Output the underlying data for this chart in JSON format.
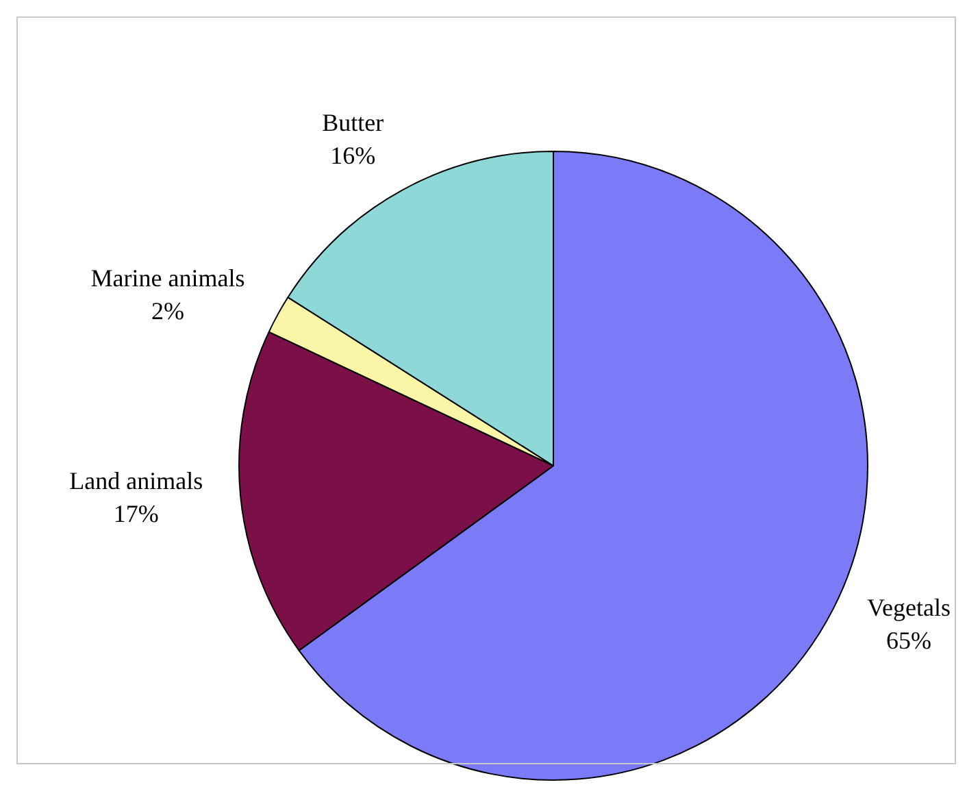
{
  "chart_data": {
    "type": "pie",
    "categories": [
      "Vegetals",
      "Land animals",
      "Marine animals",
      "Butter"
    ],
    "values": [
      65,
      17,
      2,
      16
    ],
    "colors": [
      "#7b7bf7",
      "#7b1048",
      "#fbf5a8",
      "#8fd8d8"
    ],
    "value_labels": [
      "65%",
      "17%",
      "2%",
      "16%"
    ],
    "legend": false
  }
}
